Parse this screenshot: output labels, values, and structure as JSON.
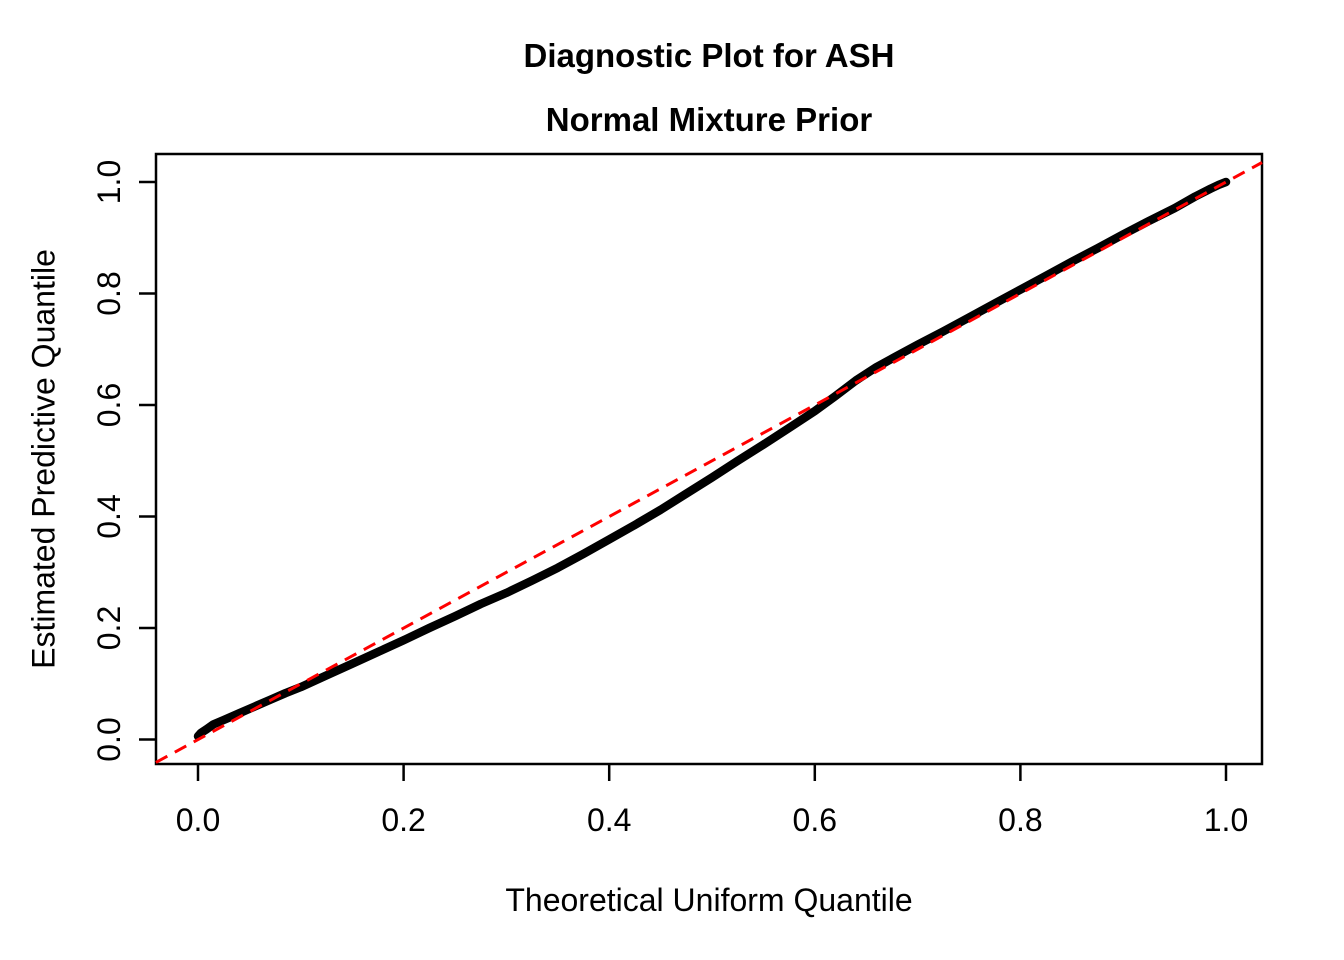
{
  "chart_data": {
    "type": "scatter",
    "title": "Diagnostic Plot for ASH",
    "subtitle": "Normal Mixture Prior",
    "xlabel": "Theoretical Uniform Quantile",
    "ylabel": "Estimated Predictive Quantile",
    "xlim": [
      -0.041,
      1.035
    ],
    "ylim": [
      -0.043,
      1.046
    ],
    "grid": false,
    "legend": "none",
    "x_ticks": [
      0.0,
      0.2,
      0.4,
      0.6,
      0.8,
      1.0
    ],
    "y_ticks": [
      0.0,
      0.2,
      0.4,
      0.6,
      0.8,
      1.0
    ],
    "x_tick_labels": [
      "0.0",
      "0.2",
      "0.4",
      "0.6",
      "0.8",
      "1.0"
    ],
    "y_tick_labels": [
      "0.0",
      "0.2",
      "0.4",
      "0.6",
      "0.8",
      "1.0"
    ],
    "colors": {
      "points": "#000000",
      "reference_line": "#FF0000",
      "axis": "#000000",
      "background": "#FFFFFF"
    },
    "series": [
      {
        "name": "estimated-predictive-quantile-curve",
        "type": "scatter",
        "color": "#000000",
        "points": [
          [
            0.0,
            0.006
          ],
          [
            0.003,
            0.012
          ],
          [
            0.008,
            0.018
          ],
          [
            0.015,
            0.027
          ],
          [
            0.025,
            0.035
          ],
          [
            0.04,
            0.047
          ],
          [
            0.055,
            0.059
          ],
          [
            0.07,
            0.071
          ],
          [
            0.085,
            0.083
          ],
          [
            0.1,
            0.094
          ],
          [
            0.125,
            0.115
          ],
          [
            0.15,
            0.136
          ],
          [
            0.175,
            0.157
          ],
          [
            0.2,
            0.178
          ],
          [
            0.225,
            0.2
          ],
          [
            0.25,
            0.221
          ],
          [
            0.275,
            0.243
          ],
          [
            0.3,
            0.263
          ],
          [
            0.325,
            0.285
          ],
          [
            0.35,
            0.308
          ],
          [
            0.375,
            0.333
          ],
          [
            0.4,
            0.359
          ],
          [
            0.425,
            0.385
          ],
          [
            0.45,
            0.412
          ],
          [
            0.475,
            0.441
          ],
          [
            0.5,
            0.47
          ],
          [
            0.525,
            0.5
          ],
          [
            0.55,
            0.529
          ],
          [
            0.575,
            0.559
          ],
          [
            0.6,
            0.589
          ],
          [
            0.62,
            0.616
          ],
          [
            0.64,
            0.644
          ],
          [
            0.66,
            0.668
          ],
          [
            0.68,
            0.688
          ],
          [
            0.7,
            0.708
          ],
          [
            0.725,
            0.732
          ],
          [
            0.75,
            0.757
          ],
          [
            0.775,
            0.782
          ],
          [
            0.8,
            0.807
          ],
          [
            0.825,
            0.832
          ],
          [
            0.85,
            0.857
          ],
          [
            0.875,
            0.881
          ],
          [
            0.9,
            0.906
          ],
          [
            0.925,
            0.93
          ],
          [
            0.95,
            0.953
          ],
          [
            0.97,
            0.974
          ],
          [
            0.985,
            0.988
          ],
          [
            0.993,
            0.995
          ],
          [
            1.0,
            1.0
          ]
        ]
      },
      {
        "name": "identity-reference-line",
        "type": "line-dashed",
        "color": "#FF0000",
        "points": [
          [
            -0.041,
            -0.041
          ],
          [
            1.035,
            1.035
          ]
        ]
      }
    ]
  }
}
